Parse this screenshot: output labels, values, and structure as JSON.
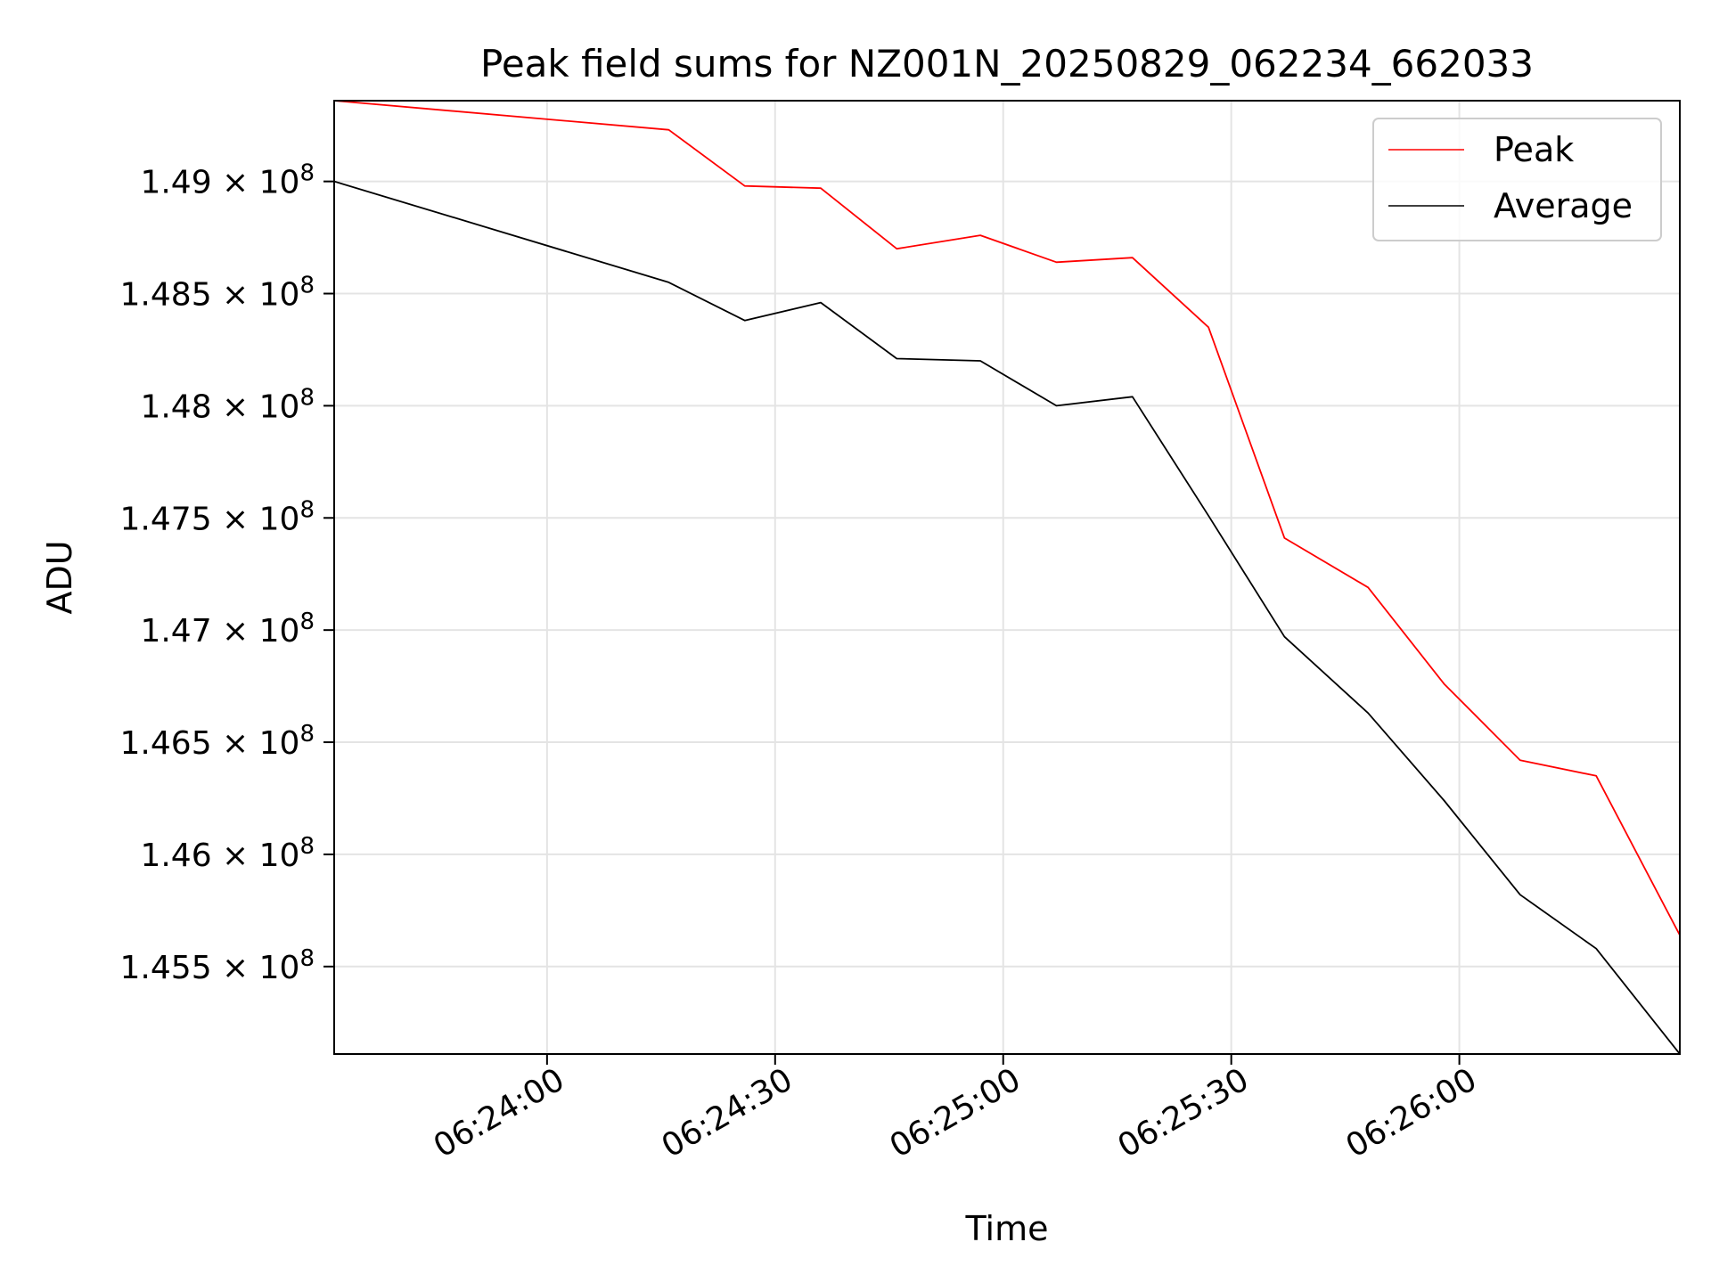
{
  "chart_data": {
    "type": "line",
    "title": "Peak field sums for NZ001N_20250829_062234_662033",
    "xlabel": "Time",
    "ylabel": "ADU",
    "xlim": [
      "06:23:32",
      "06:26:29"
    ],
    "ylim": [
      145110000,
      149360000
    ],
    "x_ticks": [
      "06:24:00",
      "06:24:30",
      "06:25:00",
      "06:25:30",
      "06:26:00"
    ],
    "y_ticks": [
      {
        "mantissa": "1.455",
        "value": 145500000
      },
      {
        "mantissa": "1.46",
        "value": 146000000
      },
      {
        "mantissa": "1.465",
        "value": 146500000
      },
      {
        "mantissa": "1.47",
        "value": 147000000
      },
      {
        "mantissa": "1.475",
        "value": 147500000
      },
      {
        "mantissa": "1.48",
        "value": 148000000
      },
      {
        "mantissa": "1.485",
        "value": 148500000
      },
      {
        "mantissa": "1.49",
        "value": 149000000
      }
    ],
    "y_tick_suffix": "× 10",
    "y_tick_exponent": "8",
    "grid": true,
    "legend_position": "top-right",
    "x": [
      "06:23:32",
      "06:24:16",
      "06:24:26",
      "06:24:36",
      "06:24:46",
      "06:24:57",
      "06:25:07",
      "06:25:17",
      "06:25:27",
      "06:25:37",
      "06:25:48",
      "06:25:58",
      "06:26:08",
      "06:26:18",
      "06:26:29"
    ],
    "series": [
      {
        "name": "Peak",
        "color": "#ff0000",
        "values": [
          149360000,
          149230000,
          148980000,
          148970000,
          148700000,
          148760000,
          148640000,
          148660000,
          148350000,
          147410000,
          147190000,
          146760000,
          146420000,
          146350000,
          145640000
        ]
      },
      {
        "name": "Average",
        "color": "#000000",
        "values": [
          149000000,
          148550000,
          148380000,
          148460000,
          148210000,
          148200000,
          148000000,
          148040000,
          147510000,
          146970000,
          146630000,
          146240000,
          145820000,
          145580000,
          145110000
        ]
      }
    ]
  }
}
